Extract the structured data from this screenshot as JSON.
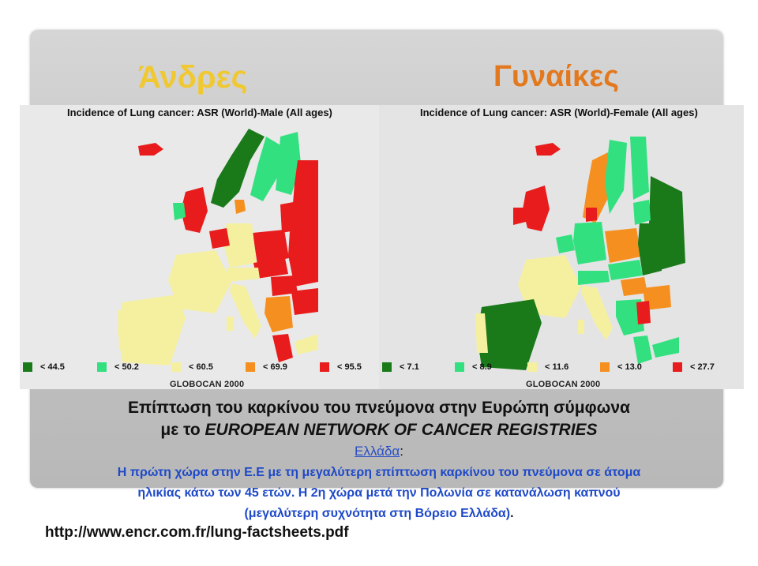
{
  "headings": {
    "men": "Άνδρες",
    "women": "Γυναίκες"
  },
  "maps": [
    {
      "title": "Incidence of Lung cancer: ASR (World)-Male (All ages)",
      "legend": [
        {
          "color": "#1a7a1a",
          "label": "< 44.5"
        },
        {
          "color": "#33e080",
          "label": "< 50.2"
        },
        {
          "color": "#f5f0a0",
          "label": "< 60.5"
        },
        {
          "color": "#f59020",
          "label": "< 69.9"
        },
        {
          "color": "#e81c1c",
          "label": "< 95.5"
        }
      ],
      "source": "GLOBOCAN 2000"
    },
    {
      "title": "Incidence of Lung cancer: ASR (World)-Female (All ages)",
      "legend": [
        {
          "color": "#1a7a1a",
          "label": "< 7.1"
        },
        {
          "color": "#33e080",
          "label": "< 8.9"
        },
        {
          "color": "#f5f0a0",
          "label": "< 11.6"
        },
        {
          "color": "#f59020",
          "label": "< 13.0"
        },
        {
          "color": "#e81c1c",
          "label": "< 27.7"
        }
      ],
      "source": "GLOBOCAN 2000"
    }
  ],
  "caption": {
    "line1": "Επίπτωση του καρκίνου του πνεύμονα στην Ευρώπη σύμφωνα",
    "line2_prefix": "με το ",
    "line2_em": "EUROPEAN NETWORK OF CANCER REGISTRIES",
    "country": "Ελλάδα",
    "colon": ":",
    "line4": "Η πρώτη χώρα στην Ε.Ε με τη μεγαλύτερη επίπτωση καρκίνου του πνεύμονα σε άτομα",
    "line5": "ηλικίας κάτω των 45 ετών. Η 2η χώρα μετά την Πολωνία σε κατανάλωση καπνού",
    "line6": "(μεγαλύτερη συχνότητα στη Βόρειο Ελλάδα)",
    "line6_end": "."
  },
  "url": "http://www.encr.com.fr/lung-factsheets.pdf"
}
